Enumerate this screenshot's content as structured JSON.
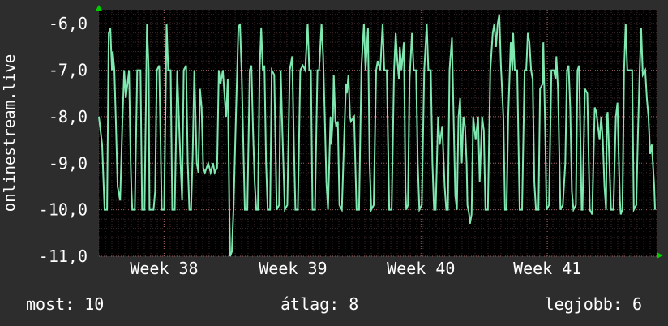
{
  "colors": {
    "background": "#2d2d2d",
    "plot_background": "#000000",
    "grid": "#5a3a3a",
    "line": "#7ee8b0",
    "axis_arrow": "#00cc00"
  },
  "chart_data": {
    "type": "line",
    "title": "",
    "xlabel": "",
    "ylabel": "onlinestream.live",
    "ylim": [
      -11.0,
      -5.7
    ],
    "yticks": [
      "-6,0",
      "-7,0",
      "-8,0",
      "-9,0",
      "-10,0",
      "-11,0"
    ],
    "ytick_values": [
      -6,
      -7,
      -8,
      -9,
      -10,
      -11
    ],
    "xlim": [
      0,
      684
    ],
    "xticks": [
      "Week 38",
      "Week 39",
      "Week 40",
      "Week 41"
    ],
    "xtick_values": [
      80,
      238,
      395,
      550
    ],
    "grid": true,
    "series": [
      {
        "name": "",
        "points": [
          [
            0,
            -8.0
          ],
          [
            4,
            -8.6
          ],
          [
            7,
            -10.0
          ],
          [
            10,
            -10.0
          ],
          [
            12,
            -6.2
          ],
          [
            14,
            -6.1
          ],
          [
            16,
            -7.0
          ],
          [
            17,
            -6.6
          ],
          [
            19,
            -7.0
          ],
          [
            21,
            -8.2
          ],
          [
            23,
            -9.5
          ],
          [
            26,
            -9.8
          ],
          [
            29,
            -8.0
          ],
          [
            31,
            -7.0
          ],
          [
            33,
            -7.6
          ],
          [
            37,
            -7.0
          ],
          [
            39,
            -9.0
          ],
          [
            40,
            -9.6
          ],
          [
            41,
            -10.0
          ],
          [
            44,
            -10.0
          ],
          [
            47,
            -7.0
          ],
          [
            51,
            -7.0
          ],
          [
            53,
            -10.0
          ],
          [
            56,
            -10.0
          ],
          [
            59,
            -6.0
          ],
          [
            61,
            -7.0
          ],
          [
            62,
            -10.0
          ],
          [
            67,
            -10.0
          ],
          [
            69,
            -9.6
          ],
          [
            71,
            -7.0
          ],
          [
            74,
            -6.9
          ],
          [
            77,
            -10.0
          ],
          [
            80,
            -10.0
          ],
          [
            83,
            -6.0
          ],
          [
            85,
            -7.0
          ],
          [
            88,
            -7.0
          ],
          [
            90,
            -10.0
          ],
          [
            93,
            -10.0
          ],
          [
            96,
            -7.0
          ],
          [
            99,
            -8.5
          ],
          [
            102,
            -9.8
          ],
          [
            104,
            -7.0
          ],
          [
            107,
            -6.9
          ],
          [
            109,
            -9.0
          ],
          [
            111,
            -10.0
          ],
          [
            113,
            -10.0
          ],
          [
            115,
            -8.8
          ],
          [
            117,
            -7.0
          ],
          [
            120,
            -9.0
          ],
          [
            122,
            -9.2
          ],
          [
            124,
            -7.4
          ],
          [
            126,
            -7.8
          ],
          [
            128,
            -9.1
          ],
          [
            130,
            -9.2
          ],
          [
            134,
            -9.0
          ],
          [
            137,
            -9.2
          ],
          [
            140,
            -9.0
          ],
          [
            142,
            -9.2
          ],
          [
            145,
            -9.1
          ],
          [
            147,
            -7.0
          ],
          [
            149,
            -7.3
          ],
          [
            152,
            -7.0
          ],
          [
            155,
            -7.8
          ],
          [
            156,
            -8.0
          ],
          [
            158,
            -7.2
          ],
          [
            160,
            -10.0
          ],
          [
            161,
            -11.0
          ],
          [
            163,
            -10.9
          ],
          [
            165,
            -10.0
          ],
          [
            168,
            -8.0
          ],
          [
            171,
            -6.1
          ],
          [
            173,
            -6.0
          ],
          [
            175,
            -7.0
          ],
          [
            177,
            -8.5
          ],
          [
            179,
            -10.0
          ],
          [
            182,
            -10.0
          ],
          [
            185,
            -7.0
          ],
          [
            187,
            -6.9
          ],
          [
            189,
            -8.3
          ],
          [
            191,
            -9.4
          ],
          [
            193,
            -10.0
          ],
          [
            195,
            -10.0
          ],
          [
            197,
            -7.0
          ],
          [
            199,
            -6.1
          ],
          [
            201,
            -7.0
          ],
          [
            203,
            -6.9
          ],
          [
            205,
            -9.0
          ],
          [
            207,
            -10.0
          ],
          [
            210,
            -10.0
          ],
          [
            212,
            -7.0
          ],
          [
            215,
            -7.1
          ],
          [
            218,
            -10.0
          ],
          [
            221,
            -9.9
          ],
          [
            223,
            -7.0
          ],
          [
            225,
            -8.3
          ],
          [
            228,
            -10.0
          ],
          [
            231,
            -9.9
          ],
          [
            234,
            -7.0
          ],
          [
            237,
            -6.7
          ],
          [
            239,
            -8.5
          ],
          [
            241,
            -10.0
          ],
          [
            244,
            -10.0
          ],
          [
            247,
            -7.0
          ],
          [
            250,
            -6.9
          ],
          [
            253,
            -7.0
          ],
          [
            256,
            -6.0
          ],
          [
            258,
            -7.0
          ],
          [
            260,
            -7.0
          ],
          [
            262,
            -10.0
          ],
          [
            265,
            -10.0
          ],
          [
            268,
            -7.0
          ],
          [
            270,
            -7.0
          ],
          [
            273,
            -6.0
          ],
          [
            275,
            -6.7
          ],
          [
            277,
            -8.0
          ],
          [
            279,
            -9.4
          ],
          [
            281,
            -10.0
          ],
          [
            284,
            -8.0
          ],
          [
            285,
            -8.6
          ],
          [
            287,
            -8.0
          ],
          [
            288,
            -7.1
          ],
          [
            290,
            -8.1
          ],
          [
            291,
            -8.2
          ],
          [
            293,
            -8.1
          ],
          [
            295,
            -9.9
          ],
          [
            298,
            -10.0
          ],
          [
            301,
            -8.3
          ],
          [
            303,
            -7.3
          ],
          [
            304,
            -7.5
          ],
          [
            306,
            -7.1
          ],
          [
            308,
            -8.0
          ],
          [
            309,
            -8.1
          ],
          [
            313,
            -8.0
          ],
          [
            316,
            -10.0
          ],
          [
            319,
            -10.0
          ],
          [
            322,
            -6.9
          ],
          [
            325,
            -6.0
          ],
          [
            327,
            -7.0
          ],
          [
            330,
            -6.1
          ],
          [
            332,
            -9.0
          ],
          [
            334,
            -10.0
          ],
          [
            337,
            -9.9
          ],
          [
            340,
            -7.0
          ],
          [
            342,
            -6.8
          ],
          [
            345,
            -7.0
          ],
          [
            348,
            -6.0
          ],
          [
            350,
            -7.0
          ],
          [
            353,
            -7.0
          ],
          [
            356,
            -10.0
          ],
          [
            359,
            -10.0
          ],
          [
            362,
            -7.0
          ],
          [
            364,
            -6.2
          ],
          [
            366,
            -6.8
          ],
          [
            368,
            -7.2
          ],
          [
            369,
            -6.5
          ],
          [
            371,
            -7.0
          ],
          [
            374,
            -6.4
          ],
          [
            376,
            -9.6
          ],
          [
            377,
            -10.0
          ],
          [
            379,
            -9.9
          ],
          [
            381,
            -7.2
          ],
          [
            384,
            -6.2
          ],
          [
            386,
            -7.0
          ],
          [
            389,
            -7.0
          ],
          [
            391,
            -9.0
          ],
          [
            393,
            -10.0
          ],
          [
            396,
            -9.9
          ],
          [
            399,
            -7.0
          ],
          [
            402,
            -6.0
          ],
          [
            404,
            -7.0
          ],
          [
            407,
            -7.0
          ],
          [
            409,
            -9.0
          ],
          [
            411,
            -10.0
          ],
          [
            413,
            -10.0
          ],
          [
            416,
            -8.0
          ],
          [
            418,
            -8.6
          ],
          [
            421,
            -8.2
          ],
          [
            424,
            -9.5
          ],
          [
            426,
            -10.0
          ],
          [
            428,
            -10.0
          ],
          [
            430,
            -7.0
          ],
          [
            433,
            -6.3
          ],
          [
            435,
            -8.0
          ],
          [
            437,
            -9.7
          ],
          [
            439,
            -10.0
          ],
          [
            441,
            -8.0
          ],
          [
            443,
            -7.6
          ],
          [
            445,
            -9.0
          ],
          [
            447,
            -8.0
          ],
          [
            449,
            -8.2
          ],
          [
            451,
            -9.0
          ],
          [
            452,
            -9.9
          ],
          [
            454,
            -10.1
          ],
          [
            455,
            -10.3
          ],
          [
            457,
            -10.1
          ],
          [
            459,
            -8.0
          ],
          [
            462,
            -8.5
          ],
          [
            465,
            -8.0
          ],
          [
            467,
            -9.4
          ],
          [
            470,
            -8.0
          ],
          [
            472,
            -8.3
          ],
          [
            474,
            -10.0
          ],
          [
            477,
            -10.0
          ],
          [
            480,
            -7.0
          ],
          [
            483,
            -6.2
          ],
          [
            485,
            -6.0
          ],
          [
            487,
            -6.5
          ],
          [
            489,
            -6.0
          ],
          [
            491,
            -5.8
          ],
          [
            493,
            -6.9
          ],
          [
            496,
            -8.0
          ],
          [
            498,
            -10.0
          ],
          [
            500,
            -10.0
          ],
          [
            502,
            -8.0
          ],
          [
            505,
            -6.4
          ],
          [
            507,
            -7.0
          ],
          [
            508,
            -6.2
          ],
          [
            510,
            -7.0
          ],
          [
            513,
            -7.0
          ],
          [
            516,
            -10.0
          ],
          [
            519,
            -10.0
          ],
          [
            522,
            -7.0
          ],
          [
            524,
            -7.0
          ],
          [
            526,
            -6.2
          ],
          [
            528,
            -6.4
          ],
          [
            530,
            -7.0
          ],
          [
            532,
            -7.2
          ],
          [
            534,
            -9.4
          ],
          [
            536,
            -10.0
          ],
          [
            539,
            -10.0
          ],
          [
            541,
            -7.4
          ],
          [
            544,
            -7.3
          ],
          [
            545,
            -6.4
          ],
          [
            547,
            -8.0
          ],
          [
            549,
            -10.0
          ],
          [
            552,
            -9.9
          ],
          [
            555,
            -7.0
          ],
          [
            558,
            -7.0
          ],
          [
            560,
            -7.2
          ],
          [
            561,
            -6.7
          ],
          [
            563,
            -7.4
          ],
          [
            566,
            -10.0
          ],
          [
            569,
            -9.9
          ],
          [
            572,
            -9.0
          ],
          [
            574,
            -7.0
          ],
          [
            576,
            -6.9
          ],
          [
            578,
            -7.8
          ],
          [
            580,
            -9.6
          ],
          [
            582,
            -10.0
          ],
          [
            585,
            -9.9
          ],
          [
            587,
            -7.0
          ],
          [
            589,
            -6.9
          ],
          [
            592,
            -10.0
          ],
          [
            593,
            -10.0
          ],
          [
            596,
            -7.4
          ],
          [
            599,
            -7.5
          ],
          [
            602,
            -10.0
          ],
          [
            605,
            -10.1
          ],
          [
            608,
            -7.8
          ],
          [
            610,
            -7.9
          ],
          [
            612,
            -8.2
          ],
          [
            614,
            -8.5
          ],
          [
            616,
            -8.0
          ],
          [
            618,
            -8.5
          ],
          [
            620,
            -9.5
          ],
          [
            622,
            -10.0
          ],
          [
            623,
            -8.0
          ],
          [
            624,
            -7.9
          ],
          [
            626,
            -9.0
          ],
          [
            628,
            -10.0
          ],
          [
            631,
            -10.0
          ],
          [
            634,
            -8.0
          ],
          [
            636,
            -7.7
          ],
          [
            637,
            -8.5
          ],
          [
            639,
            -9.8
          ],
          [
            640,
            -10.1
          ],
          [
            642,
            -10.0
          ],
          [
            644,
            -7.0
          ],
          [
            646,
            -6.0
          ],
          [
            648,
            -7.0
          ],
          [
            651,
            -7.0
          ],
          [
            654,
            -7.0
          ],
          [
            656,
            -10.0
          ],
          [
            659,
            -9.9
          ],
          [
            661,
            -8.4
          ],
          [
            663,
            -7.1
          ],
          [
            665,
            -6.1
          ],
          [
            667,
            -7.1
          ],
          [
            670,
            -7.0
          ],
          [
            672,
            -7.6
          ],
          [
            674,
            -8.0
          ],
          [
            676,
            -8.8
          ],
          [
            678,
            -8.6
          ],
          [
            681,
            -9.5
          ],
          [
            682,
            -10.0
          ]
        ]
      }
    ]
  },
  "stats": {
    "current": "most: 10",
    "average": "átlag: 8",
    "maximum": "legjobb: 6"
  }
}
